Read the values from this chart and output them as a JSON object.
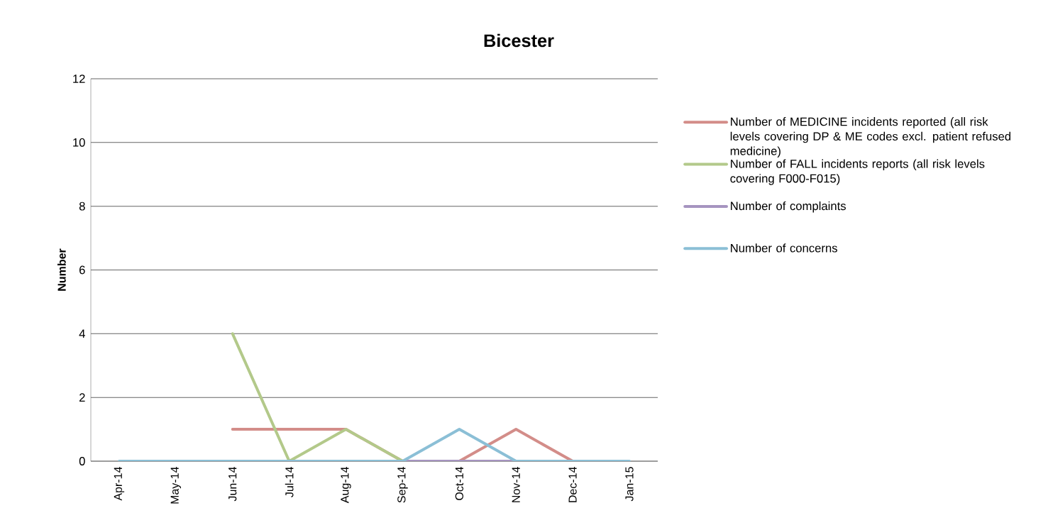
{
  "chart_data": {
    "type": "line",
    "title": "Bicester",
    "ylabel": "Number",
    "categories": [
      "Apr-14",
      "May-14",
      "Jun-14",
      "Jul-14",
      "Aug-14",
      "Sep-14",
      "Oct-14",
      "Nov-14",
      "Dec-14",
      "Jan-15"
    ],
    "ylim": [
      0,
      12
    ],
    "yticks": [
      0,
      2,
      4,
      6,
      8,
      10,
      12
    ],
    "grid": "y",
    "legend": "right",
    "series": [
      {
        "name": "Number of MEDICINE incidents reported (all risk levels covering DP & ME codes excl. patient refused medicine)",
        "color": "#d38d89",
        "values": [
          null,
          null,
          1,
          1,
          1,
          0,
          0,
          1,
          0,
          null
        ]
      },
      {
        "name": "Number of FALL incidents reports (all risk levels covering F000-F015)",
        "color": "#b3c98a",
        "values": [
          null,
          null,
          4,
          0,
          1,
          0,
          null,
          null,
          null,
          null
        ]
      },
      {
        "name": "Number of complaints",
        "color": "#a694c0",
        "values": [
          null,
          null,
          null,
          null,
          null,
          0,
          0,
          0,
          null,
          null
        ]
      },
      {
        "name": "Number of concerns",
        "color": "#8bbfd6",
        "values": [
          0,
          0,
          0,
          0,
          0,
          0,
          1,
          0,
          0,
          0
        ]
      }
    ]
  }
}
